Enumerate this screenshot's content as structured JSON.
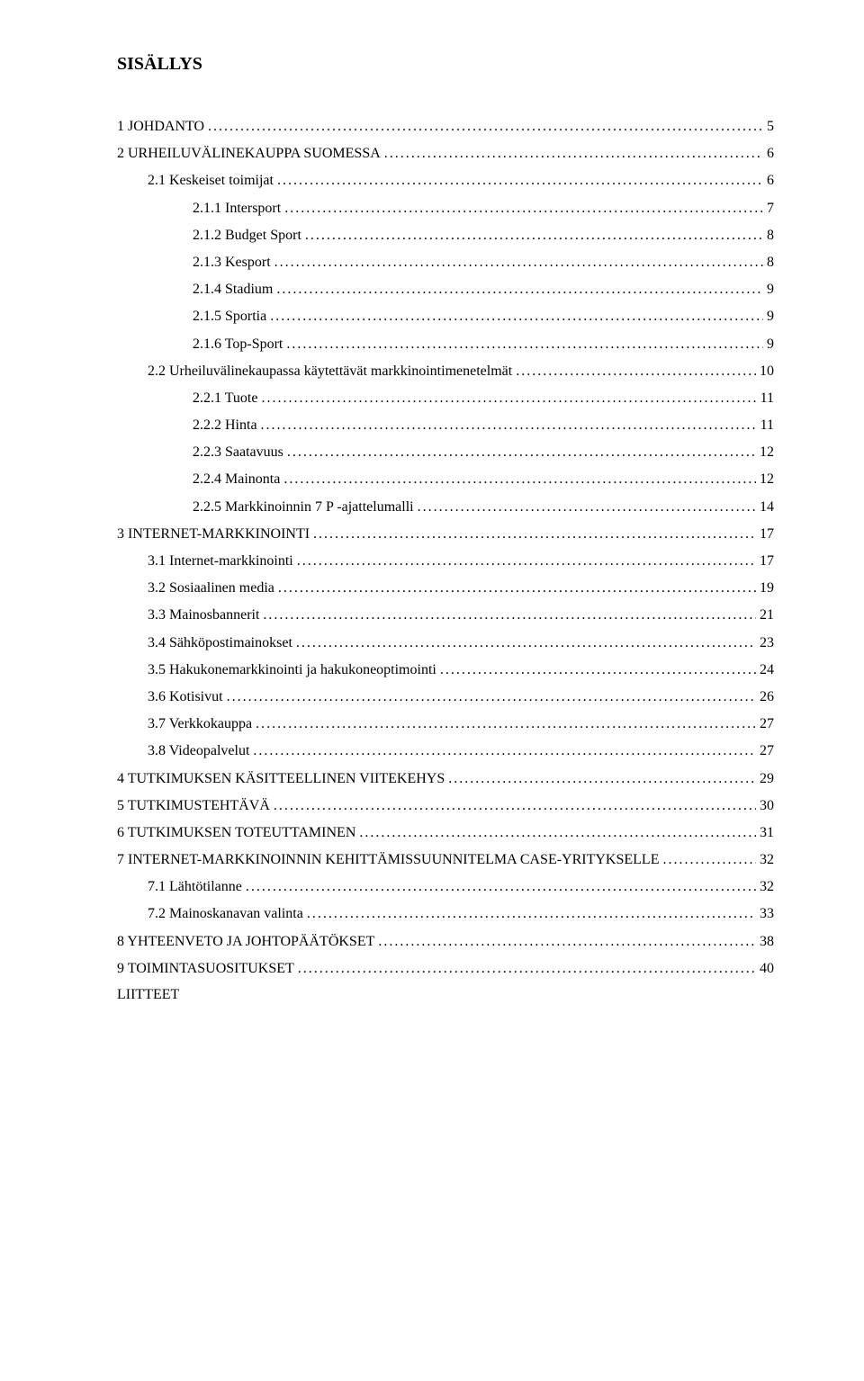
{
  "title": "SISÄLLYS",
  "appendix_label": "LIITTEET",
  "entries": [
    {
      "level": 0,
      "gap": true,
      "label": "1   JOHDANTO",
      "page": "5"
    },
    {
      "level": 0,
      "gap": true,
      "label": "2   URHEILUVÄLINEKAUPPA SUOMESSA",
      "page": "6"
    },
    {
      "level": 1,
      "gap": false,
      "label": "2.1   Keskeiset toimijat",
      "page": "6"
    },
    {
      "level": 2,
      "gap": false,
      "label": "2.1.1  Intersport",
      "page": "7"
    },
    {
      "level": 2,
      "gap": false,
      "label": "2.1.2  Budget Sport",
      "page": "8"
    },
    {
      "level": 2,
      "gap": false,
      "label": "2.1.3  Kesport",
      "page": "8"
    },
    {
      "level": 2,
      "gap": false,
      "label": "2.1.4  Stadium",
      "page": "9"
    },
    {
      "level": 2,
      "gap": false,
      "label": "2.1.5  Sportia",
      "page": "9"
    },
    {
      "level": 2,
      "gap": false,
      "label": "2.1.6  Top-Sport",
      "page": "9"
    },
    {
      "level": 1,
      "gap": false,
      "label": "2.2   Urheiluvälinekaupassa käytettävät markkinointimenetelmät",
      "page": "10"
    },
    {
      "level": 2,
      "gap": false,
      "label": "2.2.1  Tuote",
      "page": "11"
    },
    {
      "level": 2,
      "gap": false,
      "label": "2.2.2  Hinta",
      "page": "11"
    },
    {
      "level": 2,
      "gap": false,
      "label": "2.2.3  Saatavuus",
      "page": "12"
    },
    {
      "level": 2,
      "gap": false,
      "label": "2.2.4  Mainonta",
      "page": "12"
    },
    {
      "level": 2,
      "gap": false,
      "label": "2.2.5  Markkinoinnin 7 P -ajattelumalli",
      "page": "14"
    },
    {
      "level": 0,
      "gap": true,
      "label": "3   INTERNET-MARKKINOINTI",
      "page": "17"
    },
    {
      "level": 1,
      "gap": false,
      "label": "3.1   Internet-markkinointi",
      "page": "17"
    },
    {
      "level": 1,
      "gap": false,
      "label": "3.2   Sosiaalinen media",
      "page": "19"
    },
    {
      "level": 1,
      "gap": false,
      "label": "3.3   Mainosbannerit",
      "page": "21"
    },
    {
      "level": 1,
      "gap": false,
      "label": "3.4   Sähköpostimainokset",
      "page": "23"
    },
    {
      "level": 1,
      "gap": false,
      "label": "3.5   Hakukonemarkkinointi ja hakukoneoptimointi",
      "page": "24"
    },
    {
      "level": 1,
      "gap": false,
      "label": "3.6   Kotisivut",
      "page": "26"
    },
    {
      "level": 1,
      "gap": false,
      "label": "3.7   Verkkokauppa",
      "page": "27"
    },
    {
      "level": 1,
      "gap": false,
      "label": "3.8   Videopalvelut",
      "page": "27"
    },
    {
      "level": 0,
      "gap": true,
      "label": "4   TUTKIMUKSEN KÄSITTEELLINEN VIITEKEHYS",
      "page": "29"
    },
    {
      "level": 0,
      "gap": true,
      "label": "5   TUTKIMUSTEHTÄVÄ",
      "page": "30"
    },
    {
      "level": 0,
      "gap": true,
      "label": "6   TUTKIMUKSEN TOTEUTTAMINEN",
      "page": "31"
    },
    {
      "level": 0,
      "gap": true,
      "label": "7   INTERNET-MARKKINOINNIN KEHITTÄMISSUUNNITELMA CASE-YRITYKSELLE",
      "page": "32"
    },
    {
      "level": 1,
      "gap": false,
      "label": "7.1   Lähtötilanne",
      "page": "32"
    },
    {
      "level": 1,
      "gap": false,
      "label": "7.2   Mainoskanavan valinta",
      "page": "33"
    },
    {
      "level": 0,
      "gap": true,
      "label": "8   YHTEENVETO JA JOHTOPÄÄTÖKSET",
      "page": "38"
    },
    {
      "level": 0,
      "gap": true,
      "label": "9   TOIMINTASUOSITUKSET",
      "page": "40"
    }
  ]
}
